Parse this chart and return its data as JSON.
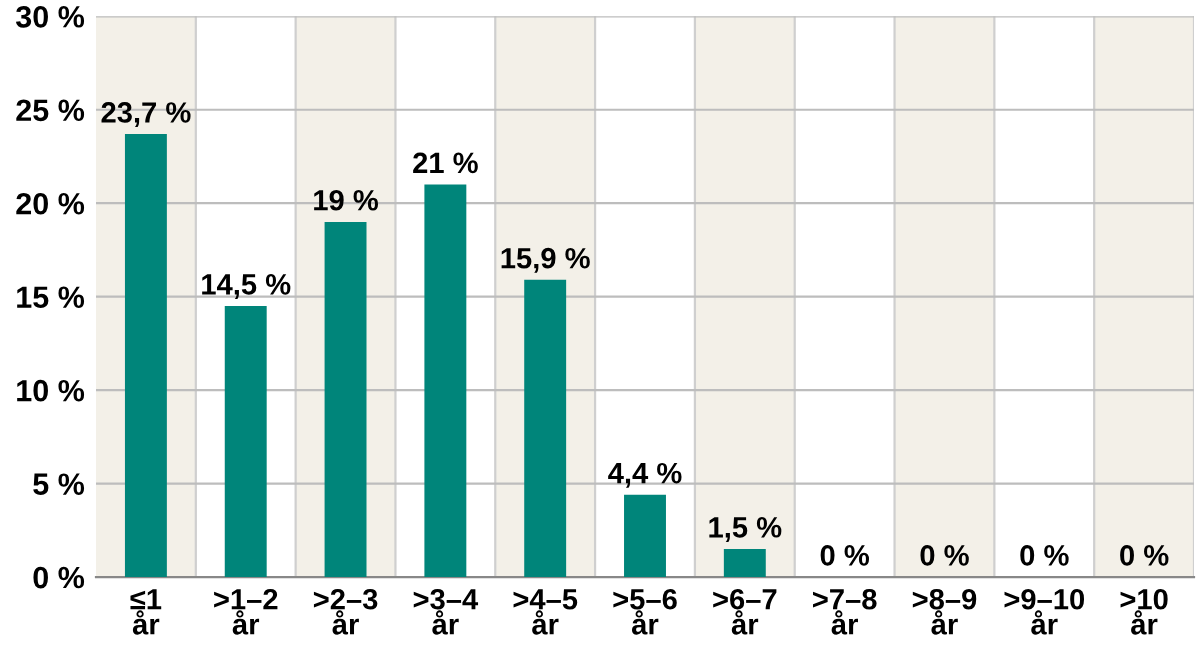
{
  "chart_data": {
    "type": "bar",
    "categories": [
      "≤1\når",
      ">1–2\når",
      ">2–3\når",
      ">3–4\når",
      ">4–5\når",
      ">5–6\når",
      ">6–7\når",
      ">7–8\når",
      ">8–9\når",
      ">9–10\når",
      ">10\når"
    ],
    "values": [
      23.7,
      14.5,
      19,
      21,
      15.9,
      4.4,
      1.5,
      0,
      0,
      0,
      0
    ],
    "value_labels": [
      "23,7 %",
      "14,5 %",
      "19 %",
      "21 %",
      "15,9 %",
      "4,4 %",
      "1,5 %",
      "0 %",
      "0 %",
      "0 %",
      "0 %"
    ],
    "color": "#00857a",
    "ylim": [
      0,
      30
    ],
    "yticks": [
      {
        "value": 0,
        "label": "0 %"
      },
      {
        "value": 5,
        "label": "5 %"
      },
      {
        "value": 10,
        "label": "10 %"
      },
      {
        "value": 15,
        "label": "15 %"
      },
      {
        "value": 20,
        "label": "20 %"
      },
      {
        "value": 25,
        "label": "25 %"
      },
      {
        "value": 30,
        "label": "30 %"
      }
    ],
    "grid": "y"
  }
}
